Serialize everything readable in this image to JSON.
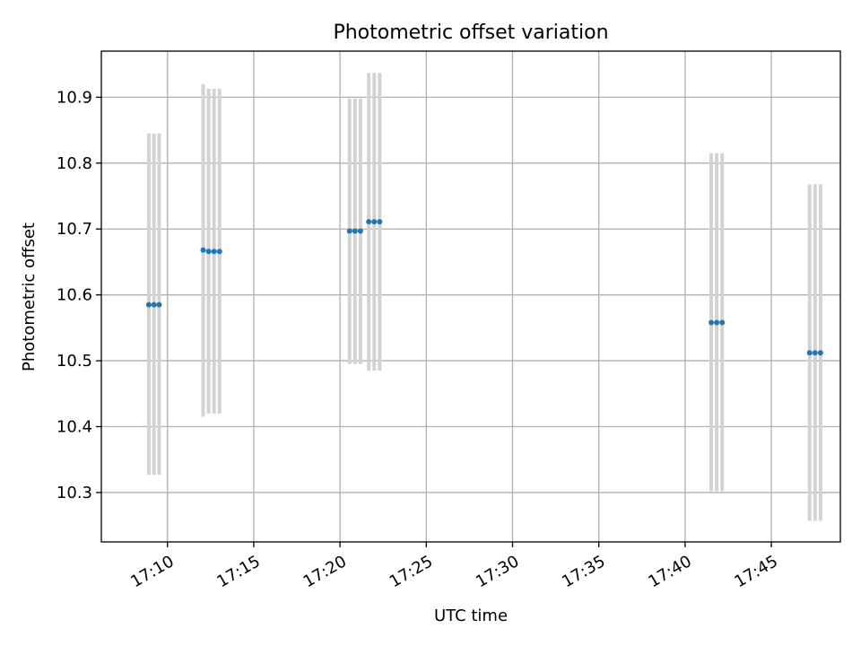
{
  "chart_data": {
    "type": "scatter",
    "title": "Photometric offset variation",
    "xlabel": "UTC time",
    "ylabel": "Photometric offset",
    "xlim": [
      "17:06:10",
      "17:49:00"
    ],
    "ylim": [
      10.225,
      10.97
    ],
    "x_ticks": [
      "17:10",
      "17:15",
      "17:20",
      "17:25",
      "17:30",
      "17:35",
      "17:40",
      "17:45"
    ],
    "y_ticks": [
      10.3,
      10.4,
      10.5,
      10.6,
      10.7,
      10.8,
      10.9
    ],
    "grid": true,
    "colors": {
      "points": "#1f77b4",
      "error_bars": "#d3d3d3"
    },
    "series": [
      {
        "points": [
          {
            "x": "17:08:55",
            "y": 10.585,
            "low": 10.327,
            "high": 10.845
          },
          {
            "x": "17:09:13",
            "y": 10.585,
            "low": 10.327,
            "high": 10.845
          },
          {
            "x": "17:09:31",
            "y": 10.585,
            "low": 10.327,
            "high": 10.845
          },
          {
            "x": "17:12:04",
            "y": 10.668,
            "low": 10.415,
            "high": 10.92
          },
          {
            "x": "17:12:23",
            "y": 10.666,
            "low": 10.42,
            "high": 10.913
          },
          {
            "x": "17:12:42",
            "y": 10.666,
            "low": 10.42,
            "high": 10.913
          },
          {
            "x": "17:13:01",
            "y": 10.666,
            "low": 10.42,
            "high": 10.913
          },
          {
            "x": "17:20:33",
            "y": 10.697,
            "low": 10.495,
            "high": 10.898
          },
          {
            "x": "17:20:52",
            "y": 10.697,
            "low": 10.495,
            "high": 10.898
          },
          {
            "x": "17:21:11",
            "y": 10.697,
            "low": 10.495,
            "high": 10.898
          },
          {
            "x": "17:21:40",
            "y": 10.711,
            "low": 10.485,
            "high": 10.937
          },
          {
            "x": "17:21:59",
            "y": 10.711,
            "low": 10.485,
            "high": 10.937
          },
          {
            "x": "17:22:18",
            "y": 10.711,
            "low": 10.485,
            "high": 10.937
          },
          {
            "x": "17:41:31",
            "y": 10.558,
            "low": 10.302,
            "high": 10.815
          },
          {
            "x": "17:41:50",
            "y": 10.558,
            "low": 10.302,
            "high": 10.815
          },
          {
            "x": "17:42:09",
            "y": 10.558,
            "low": 10.302,
            "high": 10.815
          },
          {
            "x": "17:47:13",
            "y": 10.512,
            "low": 10.257,
            "high": 10.768
          },
          {
            "x": "17:47:32",
            "y": 10.512,
            "low": 10.257,
            "high": 10.768
          },
          {
            "x": "17:47:51",
            "y": 10.512,
            "low": 10.257,
            "high": 10.768
          }
        ]
      }
    ]
  }
}
